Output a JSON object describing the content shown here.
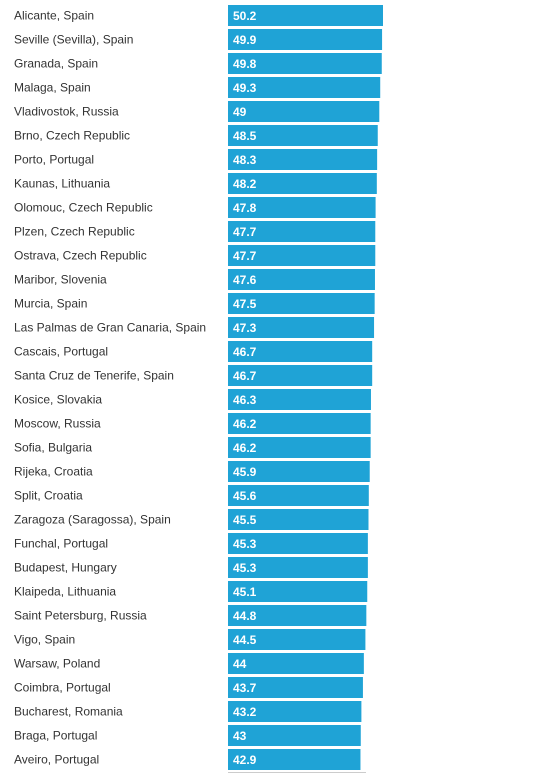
{
  "chart_data": {
    "type": "bar",
    "orientation": "horizontal",
    "title": "",
    "xlabel": "",
    "ylabel": "",
    "grid": false,
    "legend": "none",
    "bar_color": "#1fa3d6",
    "divider_color": "#cccccc",
    "categories": [
      "Alicante, Spain",
      "Seville (Sevilla), Spain",
      "Granada, Spain",
      "Malaga, Spain",
      "Vladivostok, Russia",
      "Brno, Czech Republic",
      "Porto, Portugal",
      "Kaunas, Lithuania",
      "Olomouc, Czech Republic",
      "Plzen, Czech Republic",
      "Ostrava, Czech Republic",
      "Maribor, Slovenia",
      "Murcia, Spain",
      "Las Palmas de Gran Canaria, Spain",
      "Cascais, Portugal",
      "Santa Cruz de Tenerife, Spain",
      "Kosice, Slovakia",
      "Moscow, Russia",
      "Sofia, Bulgaria",
      "Rijeka, Croatia",
      "Split, Croatia",
      "Zaragoza (Saragossa), Spain",
      "Funchal, Portugal",
      "Budapest, Hungary",
      "Klaipeda, Lithuania",
      "Saint Petersburg, Russia",
      "Vigo, Spain",
      "Warsaw, Poland",
      "Coimbra, Portugal",
      "Bucharest, Romania",
      "Braga, Portugal",
      "Aveiro, Portugal"
    ],
    "values": [
      50.2,
      49.9,
      49.8,
      49.3,
      49,
      48.5,
      48.3,
      48.2,
      47.8,
      47.7,
      47.7,
      47.6,
      47.5,
      47.3,
      46.7,
      46.7,
      46.3,
      46.2,
      46.2,
      45.9,
      45.6,
      45.5,
      45.3,
      45.3,
      45.1,
      44.8,
      44.5,
      44,
      43.7,
      43.2,
      43,
      42.9
    ],
    "value_labels": [
      "50.2",
      "49.9",
      "49.8",
      "49.3",
      "49",
      "48.5",
      "48.3",
      "48.2",
      "47.8",
      "47.7",
      "47.7",
      "47.6",
      "47.5",
      "47.3",
      "46.7",
      "46.7",
      "46.3",
      "46.2",
      "46.2",
      "45.9",
      "45.6",
      "45.5",
      "45.3",
      "45.3",
      "45.1",
      "44.8",
      "44.5",
      "44",
      "43.7",
      "43.2",
      "43",
      "42.9"
    ],
    "xlim": [
      0,
      50.2
    ]
  }
}
